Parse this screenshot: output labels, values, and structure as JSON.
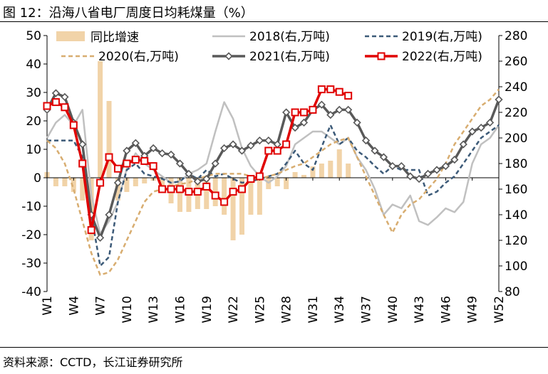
{
  "header": {
    "title": "图 12：沿海八省电厂周度日均耗煤量（%）"
  },
  "footer": {
    "source": "资料来源：CCTD，长江证券研究所"
  },
  "colors": {
    "bar": "#f1d3a8",
    "s2018": "#c0c0c0",
    "s2019": "#3c5a78",
    "s2020": "#d8ad70",
    "s2021": "#595959",
    "s2022": "#e00000"
  },
  "chart_data": {
    "type": "bar+line",
    "title": "沿海八省电厂周度日均耗煤量（%）",
    "x_tick_labels": [
      "W1",
      "W4",
      "W7",
      "W10",
      "W13",
      "W16",
      "W19",
      "W22",
      "W25",
      "W28",
      "W31",
      "W34",
      "W37",
      "W40",
      "W43",
      "W46",
      "W49",
      "W52"
    ],
    "left_axis": {
      "ylim": [
        -40,
        50
      ],
      "ticks": [
        -40,
        -30,
        -20,
        -10,
        0,
        10,
        20,
        30,
        40,
        50
      ]
    },
    "right_axis": {
      "ylim": [
        80,
        280
      ],
      "ticks": [
        80,
        100,
        120,
        140,
        160,
        180,
        200,
        220,
        240,
        260,
        280
      ]
    },
    "legend_position": "top",
    "bars": {
      "name": "同比增速",
      "axis": "left",
      "x": [
        1,
        2,
        3,
        4,
        5,
        6,
        7,
        8,
        9,
        10,
        11,
        12,
        13,
        14,
        15,
        16,
        17,
        18,
        19,
        20,
        21,
        22,
        23,
        24,
        25,
        26,
        27,
        28,
        29,
        30,
        31,
        32,
        33,
        34,
        35
      ],
      "values": [
        2,
        -3,
        -3,
        -5,
        -8,
        -22,
        41,
        27,
        -8,
        -5,
        -3,
        -2,
        -1,
        -3,
        -9,
        -12,
        -12,
        -11,
        -11,
        -10,
        -13,
        -22,
        -20,
        -13,
        -13,
        -4,
        -3,
        -4,
        2,
        1,
        4,
        5,
        6,
        10,
        5
      ]
    },
    "series": [
      {
        "name": "2018(右,万吨)",
        "style": "solid-line",
        "axis": "right",
        "x": [
          1,
          2,
          3,
          4,
          5,
          6,
          7,
          8,
          9,
          10,
          11,
          12,
          13,
          14,
          15,
          16,
          17,
          18,
          19,
          20,
          21,
          22,
          23,
          24,
          25,
          26,
          27,
          28,
          29,
          30,
          31,
          32,
          33,
          34,
          35,
          36,
          37,
          38,
          39,
          40,
          41,
          42,
          43,
          44,
          45,
          46,
          47,
          48,
          49,
          50,
          51,
          52
        ],
        "values": [
          200,
          212,
          218,
          210,
          222,
          155,
          125,
          135,
          150,
          176,
          188,
          180,
          175,
          170,
          165,
          166,
          172,
          175,
          180,
          205,
          228,
          215,
          192,
          178,
          170,
          165,
          170,
          178,
          195,
          200,
          205,
          205,
          200,
          195,
          200,
          185,
          175,
          160,
          140,
          148,
          145,
          155,
          135,
          132,
          138,
          145,
          142,
          150,
          180,
          195,
          200,
          210
        ]
      },
      {
        "name": "2019(右,万吨)",
        "style": "dashed-line",
        "axis": "right",
        "x": [
          1,
          2,
          3,
          4,
          5,
          6,
          7,
          8,
          9,
          10,
          11,
          12,
          13,
          14,
          15,
          16,
          17,
          18,
          19,
          20,
          21,
          22,
          23,
          24,
          25,
          26,
          27,
          28,
          29,
          30,
          31,
          32,
          33,
          34,
          35,
          36,
          37,
          38,
          39,
          40,
          41,
          42,
          43,
          44,
          45,
          46,
          47,
          48,
          49,
          50,
          51,
          52
        ],
        "values": [
          198,
          198,
          198,
          198,
          185,
          140,
          100,
          107,
          150,
          175,
          180,
          172,
          170,
          168,
          165,
          166,
          172,
          168,
          175,
          170,
          172,
          168,
          165,
          166,
          168,
          170,
          172,
          180,
          190,
          180,
          175,
          193,
          210,
          195,
          200,
          190,
          185,
          178,
          172,
          178,
          175,
          175,
          175,
          155,
          158,
          165,
          170,
          180,
          190,
          200,
          205,
          210
        ]
      },
      {
        "name": "2020(右,万吨)",
        "style": "dashed-line",
        "axis": "right",
        "x": [
          1,
          2,
          3,
          4,
          5,
          6,
          7,
          8,
          9,
          10,
          11,
          12,
          13,
          14,
          15,
          16,
          17,
          18,
          19,
          20,
          21,
          22,
          23,
          24,
          25,
          26,
          27,
          28,
          29,
          30,
          31,
          32,
          33,
          34,
          35,
          36,
          37,
          38,
          39,
          40,
          41,
          42,
          43,
          44,
          45,
          46,
          47,
          48,
          49,
          50,
          51,
          52
        ],
        "values": [
          198,
          192,
          180,
          160,
          135,
          110,
          93,
          95,
          105,
          120,
          135,
          150,
          158,
          160,
          162,
          164,
          165,
          168,
          170,
          172,
          172,
          172,
          172,
          170,
          168,
          170,
          172,
          175,
          178,
          180,
          185,
          190,
          195,
          198,
          200,
          185,
          170,
          155,
          140,
          126,
          140,
          148,
          152,
          160,
          168,
          180,
          195,
          205,
          215,
          225,
          230,
          238
        ]
      },
      {
        "name": "2021(右,万吨)",
        "style": "diamond-markers",
        "axis": "right",
        "x": [
          1,
          2,
          3,
          4,
          5,
          6,
          7,
          8,
          9,
          10,
          11,
          12,
          13,
          14,
          15,
          16,
          17,
          18,
          19,
          20,
          21,
          22,
          23,
          24,
          25,
          26,
          27,
          28,
          29,
          30,
          31,
          32,
          33,
          34,
          35,
          36,
          37,
          38,
          39,
          40,
          41,
          42,
          43,
          44,
          45,
          46,
          47,
          48,
          49,
          50,
          51,
          52
        ],
        "values": [
          222,
          235,
          232,
          212,
          195,
          140,
          122,
          140,
          165,
          190,
          196,
          186,
          192,
          188,
          187,
          180,
          172,
          166,
          168,
          180,
          192,
          195,
          190,
          194,
          198,
          198,
          195,
          220,
          208,
          212,
          222,
          226,
          218,
          222,
          222,
          212,
          198,
          190,
          185,
          178,
          178,
          170,
          168,
          172,
          175,
          178,
          183,
          195,
          205,
          208,
          212,
          230
        ]
      },
      {
        "name": "2022(右,万吨)",
        "style": "square-markers",
        "axis": "right",
        "x": [
          1,
          2,
          3,
          4,
          5,
          6,
          7,
          8,
          9,
          10,
          11,
          12,
          13,
          14,
          15,
          16,
          17,
          18,
          19,
          20,
          21,
          22,
          23,
          24,
          25,
          26,
          27,
          28,
          29,
          30,
          31,
          32,
          33,
          34,
          35
        ],
        "values": [
          225,
          228,
          224,
          210,
          180,
          128,
          165,
          185,
          176,
          180,
          183,
          182,
          178,
          160,
          160,
          160,
          158,
          158,
          162,
          155,
          150,
          158,
          160,
          168,
          170,
          190,
          190,
          195,
          220,
          220,
          222,
          238,
          238,
          236,
          233
        ]
      }
    ]
  }
}
